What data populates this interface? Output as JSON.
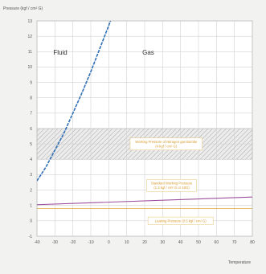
{
  "chart_data": {
    "type": "line",
    "title": "",
    "ylabel": "Pressure (kgf / cm² G)",
    "xlabel": "Temperature",
    "xlim": [
      -40,
      80
    ],
    "ylim": [
      -1,
      13
    ],
    "x_ticks": [
      -40,
      -30,
      -20,
      -10,
      0,
      10,
      20,
      30,
      40,
      50,
      60,
      70,
      80
    ],
    "y_ticks": [
      -1,
      0,
      1,
      2,
      3,
      4,
      5,
      6,
      7,
      8,
      9,
      10,
      11,
      12,
      13
    ],
    "grid": true,
    "region_labels": [
      {
        "text": "Fluid",
        "x": -27,
        "y": 10.8
      },
      {
        "text": "Gas",
        "x": 22,
        "y": 10.8
      }
    ],
    "series": [
      {
        "name": "",
        "color": "#2f6fb5",
        "style": "dashed",
        "x": [
          -40,
          -35,
          -30,
          -25,
          -20,
          -15,
          -10,
          -5,
          0,
          2
        ],
        "y": [
          2.6,
          3.5,
          4.6,
          5.7,
          7.0,
          8.3,
          9.7,
          11.2,
          12.7,
          13.3
        ]
      },
      {
        "name": "",
        "color": "#9b4f9b",
        "style": "solid",
        "x": [
          -40,
          80
        ],
        "y": [
          1.05,
          1.55
        ]
      }
    ],
    "bands": [
      {
        "y_from": 4.0,
        "y_to": 6.0,
        "pattern": "hatched"
      }
    ],
    "reference_lines": [
      {
        "y": 0.8,
        "color": "#e3b25a"
      }
    ],
    "annotations": [
      {
        "lines": [
          "Working Pressure of Nitrogen gas Bombe",
          "(4 kgf / cm² G)"
        ],
        "x": 32,
        "y": 5.0
      },
      {
        "lines": [
          "Standard Working Pressure",
          "(1.3 kgf / cm² G or 18G)"
        ],
        "x": 35,
        "y": 2.3
      },
      {
        "lines": [
          "Leaking Pressure (0.5 kgf / cm² G)"
        ],
        "x": 40,
        "y": 0.0
      }
    ]
  }
}
